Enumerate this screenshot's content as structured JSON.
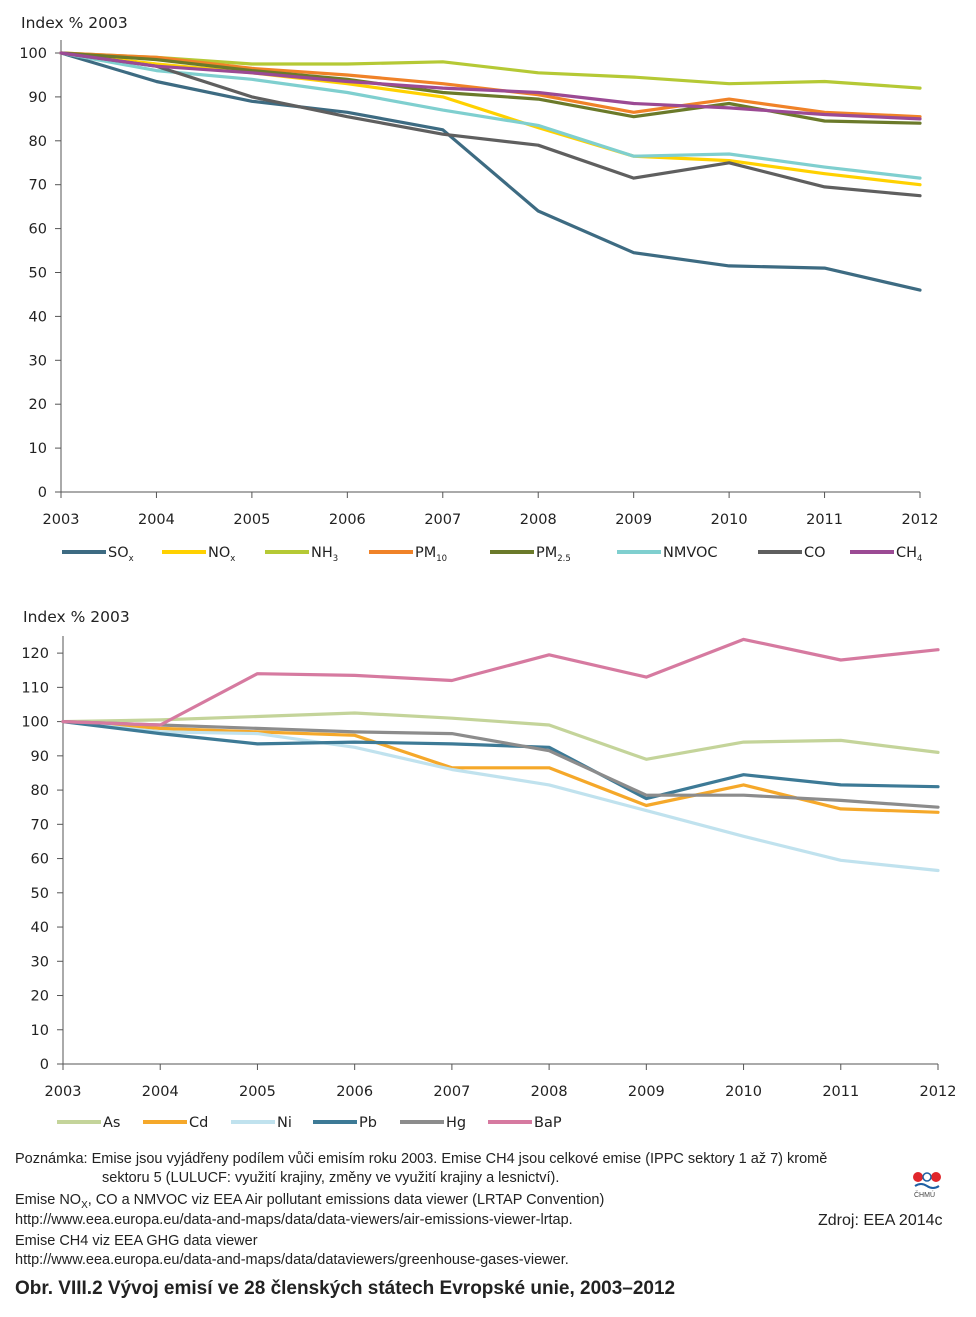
{
  "chart_data": [
    {
      "type": "line",
      "ylabel": "Index % 2003",
      "x": [
        "2003",
        "2004",
        "2005",
        "2006",
        "2007",
        "2008",
        "2009",
        "2010",
        "2011",
        "2012"
      ],
      "ylim": [
        0,
        100
      ],
      "yticks": [
        0,
        10,
        20,
        30,
        40,
        50,
        60,
        70,
        80,
        90,
        100
      ],
      "legend_position": "bottom",
      "series": [
        {
          "name": "SOx",
          "base": "SO",
          "sub": "x",
          "color": "#3d6b82",
          "values": [
            100,
            93.5,
            89,
            86.5,
            82.5,
            64,
            54.5,
            51.5,
            51,
            46
          ]
        },
        {
          "name": "NOx",
          "base": "NO",
          "sub": "x",
          "color": "#ffd100",
          "values": [
            100,
            97.5,
            95.5,
            93,
            90,
            83,
            76.5,
            75.5,
            72.5,
            70
          ]
        },
        {
          "name": "NH3",
          "base": "NH",
          "sub": "3",
          "color": "#b5c935",
          "values": [
            100,
            99,
            97.5,
            97.5,
            98,
            95.5,
            94.5,
            93,
            93.5,
            92
          ]
        },
        {
          "name": "PM10",
          "base": "PM",
          "sub": "10",
          "color": "#f08228",
          "values": [
            100,
            99,
            96.5,
            95,
            93,
            90.5,
            86.5,
            89.5,
            86.5,
            85.5
          ]
        },
        {
          "name": "PM2.5",
          "base": "PM",
          "sub": "2.5",
          "color": "#6b7a2a",
          "values": [
            100,
            98.5,
            96,
            94,
            91,
            89.5,
            85.5,
            88.5,
            84.5,
            84
          ]
        },
        {
          "name": "NMVOC",
          "base": "NMVOC",
          "sub": "",
          "color": "#7fcfcf",
          "values": [
            100,
            96,
            94,
            91,
            87,
            83.5,
            76.5,
            77,
            74,
            71.5
          ]
        },
        {
          "name": "CO",
          "base": "CO",
          "sub": "",
          "color": "#5f5f5f",
          "values": [
            100,
            97,
            90,
            85.5,
            81.5,
            79,
            71.5,
            75,
            69.5,
            67.5
          ]
        },
        {
          "name": "CH4",
          "base": "CH",
          "sub": "4",
          "color": "#9b4a94",
          "values": [
            100,
            97,
            95.5,
            93.5,
            92,
            91,
            88.5,
            87.5,
            86,
            85
          ]
        }
      ]
    },
    {
      "type": "line",
      "ylabel": "Index % 2003",
      "x": [
        "2003",
        "2004",
        "2005",
        "2006",
        "2007",
        "2008",
        "2009",
        "2010",
        "2011",
        "2012"
      ],
      "ylim": [
        0,
        125
      ],
      "yticks": [
        0,
        10,
        20,
        30,
        40,
        50,
        60,
        70,
        80,
        90,
        100,
        110,
        120
      ],
      "legend_position": "bottom",
      "series": [
        {
          "name": "As",
          "base": "As",
          "sub": "",
          "color": "#c4d49a",
          "values": [
            100,
            100.5,
            101.5,
            102.5,
            101,
            99,
            89,
            94,
            94.5,
            91
          ]
        },
        {
          "name": "Cd",
          "base": "Cd",
          "sub": "",
          "color": "#f5a82a",
          "values": [
            100,
            98,
            97,
            96,
            86.5,
            86.5,
            75.5,
            81.5,
            74.5,
            73.5
          ]
        },
        {
          "name": "Ni",
          "base": "Ni",
          "sub": "",
          "color": "#c0e2ee",
          "values": [
            100,
            97,
            96.5,
            92.5,
            86,
            81.5,
            74,
            66.5,
            59.5,
            56.5
          ]
        },
        {
          "name": "Pb",
          "base": "Pb",
          "sub": "",
          "color": "#3d7a96",
          "values": [
            100,
            96.5,
            93.5,
            94,
            93.5,
            92.5,
            77.5,
            84.5,
            81.5,
            81
          ]
        },
        {
          "name": "Hg",
          "base": "Hg",
          "sub": "",
          "color": "#8c8c8c",
          "values": [
            100,
            99,
            98,
            97,
            96.5,
            91.5,
            78.5,
            78.5,
            77,
            75
          ]
        },
        {
          "name": "BaP",
          "base": "BaP",
          "sub": "",
          "color": "#d67aa0",
          "values": [
            100,
            99,
            114,
            113.5,
            112,
            119.5,
            113,
            124,
            118,
            121
          ]
        }
      ]
    }
  ],
  "notes": {
    "line1": "Poznámka: Emise jsou vyjádřeny podílem vůči emisím roku 2003. Emise CH4 jsou celkové emise (IPPC sektory 1 až 7) kromě",
    "line2": "sektoru 5 (LULUCF: využití krajiny, změny ve využití krajiny a lesnictví).",
    "line3_a": "Emise NO",
    "line3_sub": "X",
    "line3_b": ", CO a NMVOC viz EEA Air pollutant emissions data viewer (LRTAP Convention)",
    "line4": "http://www.eea.europa.eu/data-and-maps/data/data-viewers/air-emissions-viewer-lrtap.",
    "line5": "Emise CH4 viz EEA GHG data viewer",
    "line6": "http://www.eea.europa.eu/data-and-maps/data/dataviewers/greenhouse-gases-viewer."
  },
  "source": "Zdroj: EEA 2014c",
  "logo_text": "ČHMÚ",
  "caption": "Obr. VIII.2  Vývoj emisí ve 28 členských státech Evropské unie, 2003–2012"
}
